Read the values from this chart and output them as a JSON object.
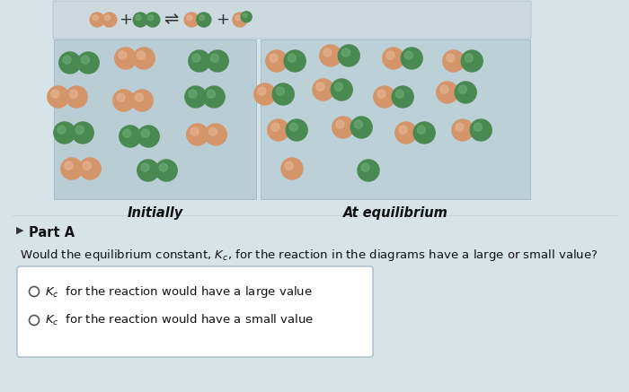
{
  "page_bg": "#d6e4e8",
  "header_bg": "#ccd9de",
  "box_bg_initially": "#b8cdd4",
  "box_bg_equilibrium": "#bcd0d8",
  "initially_label": "Initially",
  "equilibrium_label": "At equilibrium",
  "part_a_label": "Part A",
  "question_text": "Would the equilibrium constant, $K_c$, for the reaction in the diagrams have a large or small value?",
  "option1": "$K_c$  for the reaction would have a large value",
  "option2": "$K_c$  for the reaction would have a small value",
  "orange": "#d4956a",
  "orange_hi": "#e8b898",
  "green": "#4a8a52",
  "green_hi": "#70b078",
  "figw": 7.0,
  "figh": 4.37,
  "dpi": 100
}
